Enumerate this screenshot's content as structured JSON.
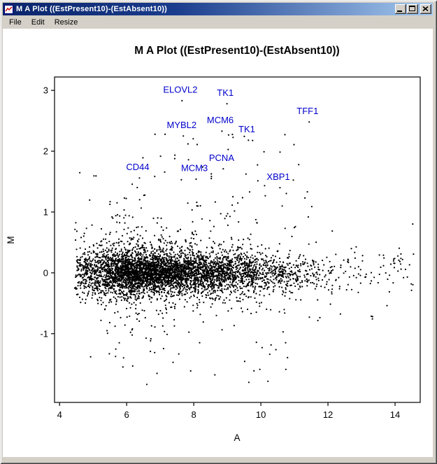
{
  "window": {
    "title": "M A Plot ((EstPresent10)-(EstAbsent10))",
    "controls": {
      "minimize": "minimize",
      "maximize": "maximize",
      "close": "close"
    }
  },
  "menu": {
    "items": [
      {
        "label": "File"
      },
      {
        "label": "Edit"
      },
      {
        "label": "Resize"
      }
    ]
  },
  "chart_data": {
    "type": "scatter",
    "title": "M A Plot ((EstPresent10)-(EstAbsent10))",
    "xlabel": "A",
    "ylabel": "M",
    "xlim": [
      3.85,
      14.75
    ],
    "ylim": [
      -2.13,
      3.22
    ],
    "x_ticks": [
      4,
      6,
      8,
      10,
      12,
      14
    ],
    "y_ticks": [
      -1,
      0,
      1,
      2,
      3
    ],
    "grid": false,
    "point_color": "#000000",
    "label_color": "#0000cc",
    "labeled_points": [
      {
        "name": "ELOVL2",
        "a": 7.6,
        "m": 2.96
      },
      {
        "name": "TK1",
        "a": 8.94,
        "m": 2.91
      },
      {
        "name": "TFF1",
        "a": 11.39,
        "m": 2.61
      },
      {
        "name": "MCM6",
        "a": 8.79,
        "m": 2.46
      },
      {
        "name": "MYBL2",
        "a": 7.64,
        "m": 2.38
      },
      {
        "name": "TK1",
        "a": 9.58,
        "m": 2.31
      },
      {
        "name": "PCNA",
        "a": 8.83,
        "m": 1.84
      },
      {
        "name": "CD44",
        "a": 6.33,
        "m": 1.69
      },
      {
        "name": "MCM3",
        "a": 8.02,
        "m": 1.67
      },
      {
        "name": "XBP1",
        "a": 10.52,
        "m": 1.53
      }
    ],
    "point_cloud": {
      "n": 5200,
      "seed": 20,
      "description": "Dense MA scatter: ~5000 probes centered at M=0; A ranges 4.5-14.6, densest between A=5 and A=9 with a sparse right tail; bulk vertical spread about +/-0.5 with outliers to roughly -1.9 and +3."
    }
  }
}
